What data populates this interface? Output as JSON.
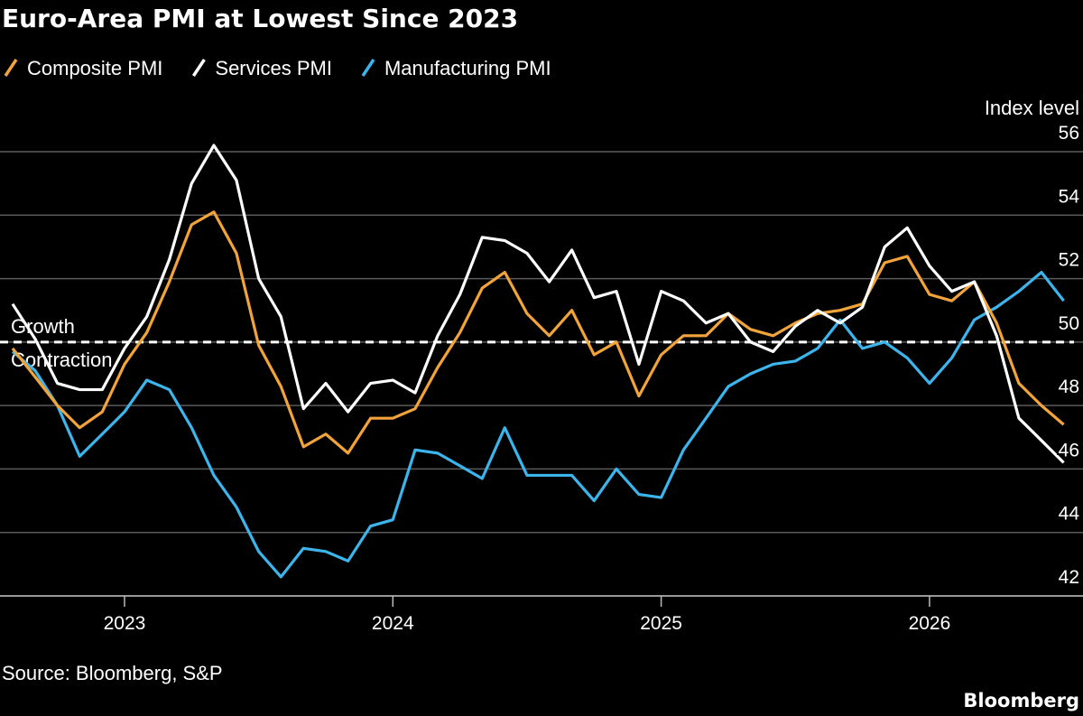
{
  "chart_data": {
    "type": "line",
    "title": "Euro-Area PMI at Lowest Since 2023",
    "y_axis_label": "Index level",
    "source": "Source: Bloomberg, S&P",
    "branding": "Bloomberg",
    "annotations": [
      "Growth",
      "Contraction"
    ],
    "threshold": 50,
    "x": [
      2022.583,
      2022.667,
      2022.75,
      2022.833,
      2022.917,
      2023,
      2023.083,
      2023.167,
      2023.25,
      2023.333,
      2023.417,
      2023.5,
      2023.583,
      2023.667,
      2023.75,
      2023.833,
      2023.917,
      2024,
      2024.083,
      2024.167,
      2024.25,
      2024.333,
      2024.417,
      2024.5,
      2024.583,
      2024.667,
      2024.75,
      2024.833,
      2024.917,
      2025,
      2025.083,
      2025.167,
      2025.25,
      2025.333,
      2025.417,
      2025.5,
      2025.583,
      2025.667,
      2025.75,
      2025.833,
      2025.917,
      2026,
      2026.083,
      2026.167,
      2026.25,
      2026.333,
      2026.417,
      2026.5
    ],
    "series": [
      {
        "name": "Composite PMI",
        "color": "#f2a43a",
        "values": [
          49.8,
          48.9,
          48.0,
          47.3,
          47.8,
          49.3,
          50.3,
          51.9,
          53.7,
          54.1,
          52.8,
          49.9,
          48.6,
          46.7,
          47.1,
          46.5,
          47.6,
          47.6,
          47.9,
          49.2,
          50.3,
          51.7,
          52.2,
          50.9,
          50.2,
          51.0,
          49.6,
          50.0,
          48.3,
          49.6,
          50.2,
          50.2,
          50.9,
          50.4,
          50.2,
          50.6,
          50.9,
          51.0,
          51.2,
          52.5,
          52.7,
          51.5,
          51.3,
          51.9,
          50.6,
          48.7,
          48.0,
          47.4
        ]
      },
      {
        "name": "Services PMI",
        "color": "#ffffff",
        "values": [
          51.2,
          50.1,
          48.7,
          48.5,
          48.5,
          49.8,
          50.8,
          52.6,
          55.0,
          56.2,
          55.1,
          52.0,
          50.8,
          47.9,
          48.7,
          47.8,
          48.7,
          48.8,
          48.4,
          50.2,
          51.5,
          53.3,
          53.2,
          52.8,
          51.9,
          52.9,
          51.4,
          51.6,
          49.3,
          51.6,
          51.3,
          50.6,
          50.9,
          50.0,
          49.7,
          50.5,
          51.0,
          50.6,
          51.1,
          53.0,
          53.6,
          52.4,
          51.6,
          51.9,
          50.2,
          47.6,
          46.9,
          46.2
        ]
      },
      {
        "name": "Manufacturing PMI",
        "color": "#3cb4ec",
        "values": [
          49.7,
          49.1,
          48.0,
          46.4,
          47.1,
          47.8,
          48.8,
          48.5,
          47.3,
          45.8,
          44.8,
          43.4,
          42.6,
          43.5,
          43.4,
          43.1,
          44.2,
          44.4,
          46.6,
          46.5,
          46.1,
          45.7,
          47.3,
          45.8,
          45.8,
          45.8,
          45.0,
          46.0,
          45.2,
          45.1,
          46.6,
          47.6,
          48.6,
          49.0,
          49.3,
          49.4,
          49.8,
          50.7,
          49.8,
          50.0,
          49.5,
          48.7,
          49.5,
          50.7,
          51.1,
          51.6,
          52.2,
          51.3
        ]
      }
    ],
    "xlim": [
      2022.536,
      2026.572
    ],
    "xticks": [
      2023,
      2024,
      2025,
      2026
    ],
    "ylim": [
      42,
      56
    ],
    "yticks": [
      42,
      44,
      46,
      48,
      50,
      52,
      54,
      56
    ],
    "grid": true
  }
}
